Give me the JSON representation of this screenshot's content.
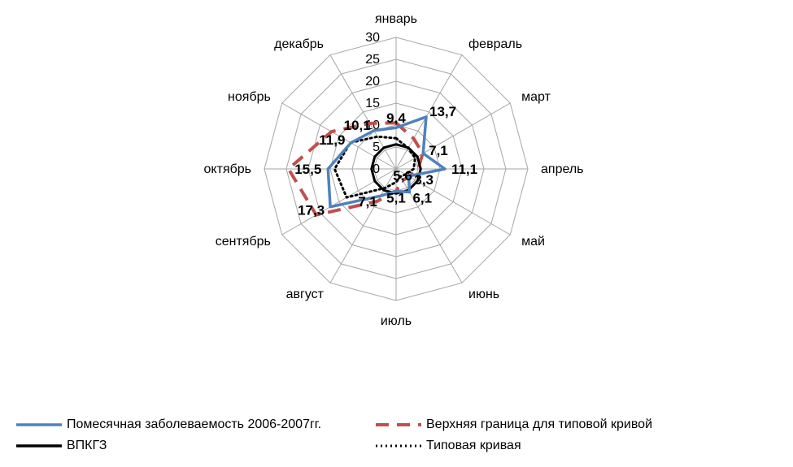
{
  "chart_data": {
    "type": "radar",
    "categories": [
      "январь",
      "февраль",
      "март",
      "апрель",
      "май",
      "июнь",
      "июль",
      "август",
      "сентябрь",
      "октябрь",
      "ноябрь",
      "декабрь"
    ],
    "radial_ticks": [
      "0",
      "5",
      "10",
      "15",
      "20",
      "25",
      "30"
    ],
    "rmax": 30,
    "series": [
      {
        "name": "Помесячная заболеваемость 2006-2007гг.",
        "values": [
          9.4,
          13.7,
          7.1,
          11.1,
          3.3,
          6.1,
          5.1,
          7.1,
          17.3,
          15.5,
          11.9,
          10.1
        ],
        "labels": [
          "9,4",
          "13,7",
          "7,1",
          "11,1",
          "3,3",
          "6,1",
          "5,1",
          "7,1",
          "17,3",
          "15,5",
          "11,9",
          "10,1"
        ],
        "color": "#4f81bd",
        "style": "solid"
      },
      {
        "name": "Верхняя граница для типовой кривой",
        "values": [
          10.5,
          8.0,
          7.0,
          5.0,
          3.5,
          3.0,
          5.0,
          8.5,
          21.0,
          24.5,
          17.0,
          12.0
        ],
        "color": "#c0504d",
        "style": "dashed"
      },
      {
        "name": "ВПКГЗ",
        "values": [
          5.6,
          5.6,
          5.6,
          5.6,
          5.6,
          5.6,
          5.6,
          5.6,
          5.6,
          5.6,
          5.6,
          5.6
        ],
        "labels": [
          "5,6"
        ],
        "color": "#000000",
        "style": "solid"
      },
      {
        "name": "Типовая кривая",
        "values": [
          7.0,
          5.5,
          5.0,
          4.0,
          2.5,
          2.0,
          3.0,
          5.0,
          13.0,
          14.0,
          12.0,
          8.5
        ],
        "color": "#000000",
        "style": "dotted"
      }
    ],
    "legend_position": "bottom"
  }
}
